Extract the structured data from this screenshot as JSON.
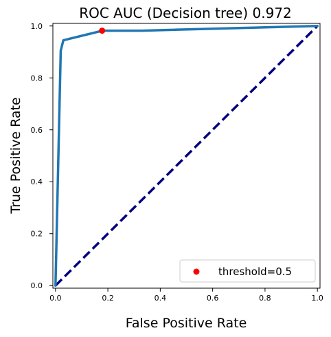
{
  "chart_data": {
    "type": "line",
    "title": "ROC AUC (Decision tree) 0.972",
    "xlabel": "False Positive Rate",
    "ylabel": "True Positive Rate",
    "xlim": [
      -0.01,
      1.01
    ],
    "ylim": [
      -0.01,
      1.01
    ],
    "x_ticks": [
      0.0,
      0.2,
      0.4,
      0.6,
      0.8,
      1.0
    ],
    "x_tick_labels": [
      "0.0",
      "0.2",
      "0.4",
      "0.6",
      "0.8",
      "1.0"
    ],
    "y_ticks": [
      0.0,
      0.2,
      0.4,
      0.6,
      0.8,
      1.0
    ],
    "y_tick_labels": [
      "0.0",
      "0.2",
      "0.4",
      "0.6",
      "0.8",
      "1.0"
    ],
    "grid": false,
    "series": [
      {
        "style": "solid",
        "color": "#1f77b4",
        "x": [
          0.0,
          0.02,
          0.03,
          0.18,
          0.33,
          1.0
        ],
        "y": [
          0.0,
          0.905,
          0.945,
          0.982,
          0.982,
          1.0
        ]
      },
      {
        "style": "dashed",
        "color": "#000080",
        "x": [
          0.0,
          1.0
        ],
        "y": [
          0.0,
          1.0
        ]
      }
    ],
    "marker": {
      "name": "threshold=0.5",
      "x": 0.178,
      "y": 0.982,
      "color": "#ff0000"
    },
    "legend": {
      "placement": "lower-right",
      "entries": [
        "threshold=0.5"
      ]
    }
  }
}
